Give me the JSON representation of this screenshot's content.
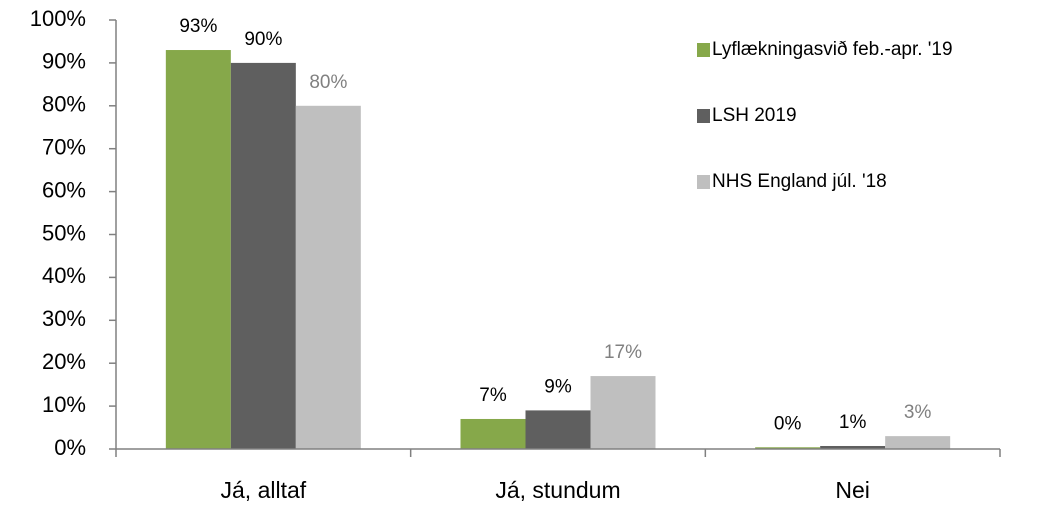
{
  "chart_data": {
    "type": "bar",
    "categories": [
      "Já, alltaf",
      "Já, stundum",
      "Nei"
    ],
    "series": [
      {
        "name": "Lyflækningasvið feb.-apr. '19",
        "color": "#86a84a",
        "values": [
          93,
          7,
          0.4
        ],
        "value_labels": [
          "93%",
          "7%",
          "0%"
        ]
      },
      {
        "name": "LSH 2019",
        "color": "#5f5f5f",
        "values": [
          90,
          9,
          0.7
        ],
        "value_labels": [
          "90%",
          "9%",
          "1%"
        ]
      },
      {
        "name": "NHS England júl. '18",
        "color": "#bfbfbf",
        "values": [
          80,
          17,
          3
        ],
        "value_labels": [
          "80%",
          "17%",
          "3%"
        ]
      }
    ],
    "ylim": [
      0,
      100
    ],
    "yticks": [
      {
        "value": 0,
        "label": "0%"
      },
      {
        "value": 10,
        "label": "10%"
      },
      {
        "value": 20,
        "label": "20%"
      },
      {
        "value": 30,
        "label": "30%"
      },
      {
        "value": 40,
        "label": "40%"
      },
      {
        "value": 50,
        "label": "50%"
      },
      {
        "value": 60,
        "label": "60%"
      },
      {
        "value": 70,
        "label": "70%"
      },
      {
        "value": 80,
        "label": "80%"
      },
      {
        "value": 90,
        "label": "90%"
      },
      {
        "value": 100,
        "label": "100%"
      }
    ],
    "grid": false,
    "legend": "right"
  }
}
